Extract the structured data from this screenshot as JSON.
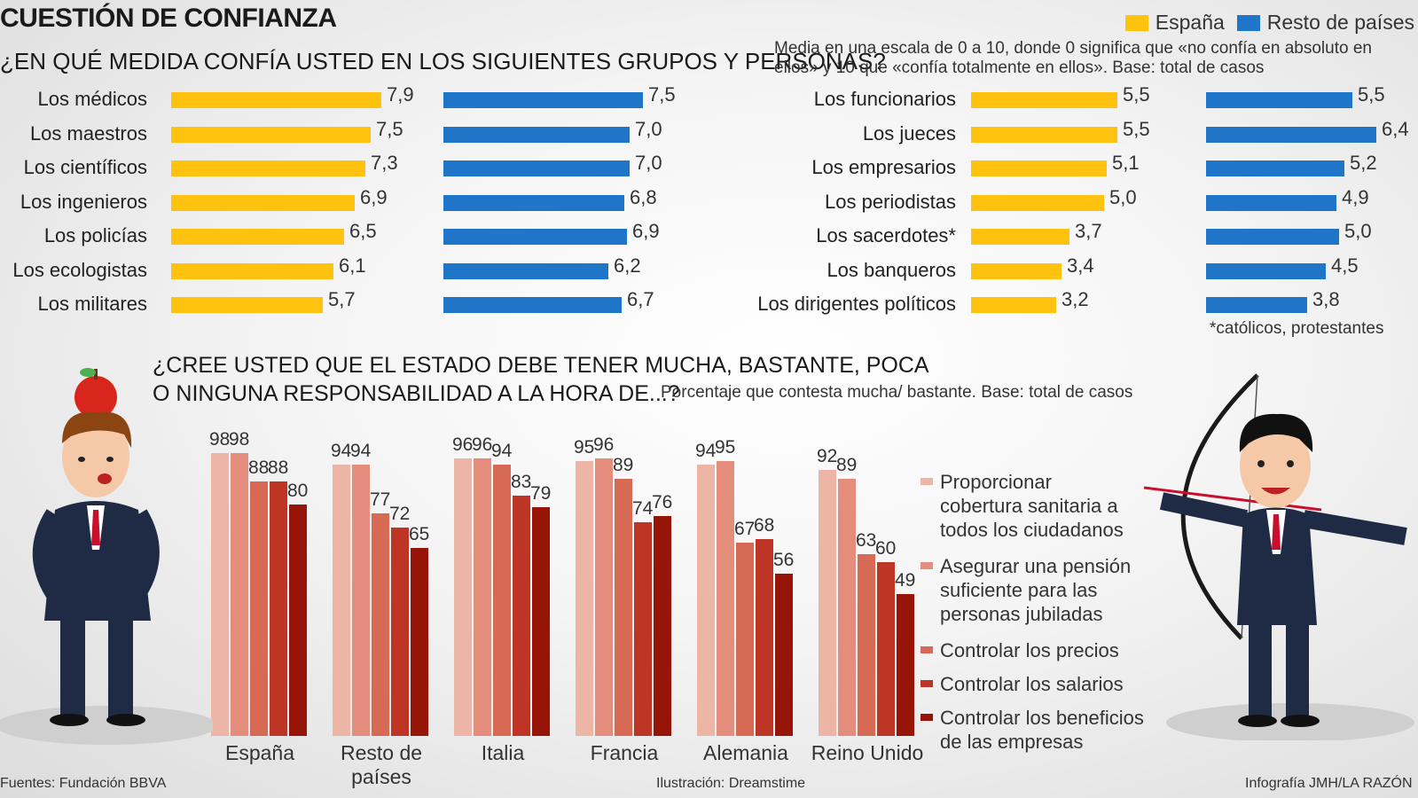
{
  "header": {
    "title": "CUESTIÓN DE CONFIANZA",
    "question": "¿EN QUÉ MEDIDA CONFÍA USTED EN LOS SIGUIENTES GRUPOS Y PERSONAS?",
    "note": "Media en una escala de 0 a 10, donde 0 significa que «no confía en absoluto en ellos» y 10 que «confía totalmente en ellos». Base: total de casos",
    "legend": [
      {
        "label": "España",
        "color": "#FFC20E"
      },
      {
        "label": "Resto de países",
        "color": "#1F75C8"
      }
    ]
  },
  "chart_data": [
    {
      "type": "bar",
      "categories": [
        "Los médicos",
        "Los maestros",
        "Los científicos",
        "Los ingenieros",
        "Los policías",
        "Los ecologistas",
        "Los militares"
      ],
      "series": [
        {
          "name": "España",
          "values": [
            7.9,
            7.5,
            7.3,
            6.9,
            6.5,
            6.1,
            5.7
          ],
          "labels": [
            "7,9",
            "7,5",
            "7,3",
            "6,9",
            "6,5",
            "6,1",
            "5,7"
          ]
        },
        {
          "name": "Resto de países",
          "values": [
            7.5,
            7.0,
            7.0,
            6.8,
            6.9,
            6.2,
            6.7
          ],
          "labels": [
            "7,5",
            "7,0",
            "7,0",
            "6,8",
            "6,9",
            "6,2",
            "6,7"
          ]
        }
      ]
    },
    {
      "type": "bar",
      "categories": [
        "Los funcionarios",
        "Los jueces",
        "Los empresarios",
        "Los periodistas",
        "Los sacerdotes*",
        "Los banqueros",
        "Los dirigentes políticos"
      ],
      "series": [
        {
          "name": "España",
          "values": [
            5.5,
            5.5,
            5.1,
            5.0,
            3.7,
            3.4,
            3.2
          ],
          "labels": [
            "5,5",
            "5,5",
            "5,1",
            "5,0",
            "3,7",
            "3,4",
            "3,2"
          ]
        },
        {
          "name": "Resto de países",
          "values": [
            5.5,
            6.4,
            5.2,
            4.9,
            5.0,
            4.5,
            3.8
          ],
          "labels": [
            "5,5",
            "6,4",
            "5,2",
            "4,9",
            "5,0",
            "4,5",
            "3,8"
          ]
        }
      ]
    },
    {
      "type": "bar",
      "categories": [
        "España",
        "Resto de países",
        "Italia",
        "Francia",
        "Alemania",
        "Reino Unido"
      ],
      "series": [
        {
          "name": "Proporcionar cobertura sanitaria a todos los ciudadanos",
          "values": [
            98,
            94,
            96,
            95,
            94,
            92
          ]
        },
        {
          "name": "Asegurar una pensión suficiente para las personas jubiladas",
          "values": [
            98,
            94,
            96,
            96,
            95,
            89
          ]
        },
        {
          "name": "Controlar los precios",
          "values": [
            88,
            77,
            94,
            89,
            67,
            63
          ]
        },
        {
          "name": "Controlar los salarios",
          "values": [
            88,
            72,
            83,
            74,
            68,
            60
          ]
        },
        {
          "name": "Controlar los beneficios de las empresas",
          "values": [
            80,
            65,
            79,
            76,
            56,
            49
          ]
        }
      ],
      "colors": [
        "#EDB5A6",
        "#E58D7C",
        "#D66A55",
        "#BE3525",
        "#961408"
      ]
    }
  ],
  "footnote": "*católicos, protestantes",
  "question2": {
    "line1": "¿CREE USTED QUE EL ESTADO DEBE TENER MUCHA, BASTANTE, POCA",
    "line2": "O NINGUNA RESPONSABILIDAD A LA HORA DE...?",
    "note": "Porcentaje que contesta mucha/ bastante.    Base: total de casos"
  },
  "legend2": [
    "Proporcionar\ncobertura sanitaria a\ntodos los ciudadanos",
    "Asegurar una pensión\nsuficiente para las\npersonas jubiladas",
    "Controlar los precios",
    "Controlar los salarios",
    "Controlar los beneficios\nde las empresas"
  ],
  "footer": {
    "sources": "Fuentes: Fundación BBVA",
    "illustration": "Ilustración: Dreamstime",
    "credit": "Infografía JMH/LA RAZÓN"
  }
}
